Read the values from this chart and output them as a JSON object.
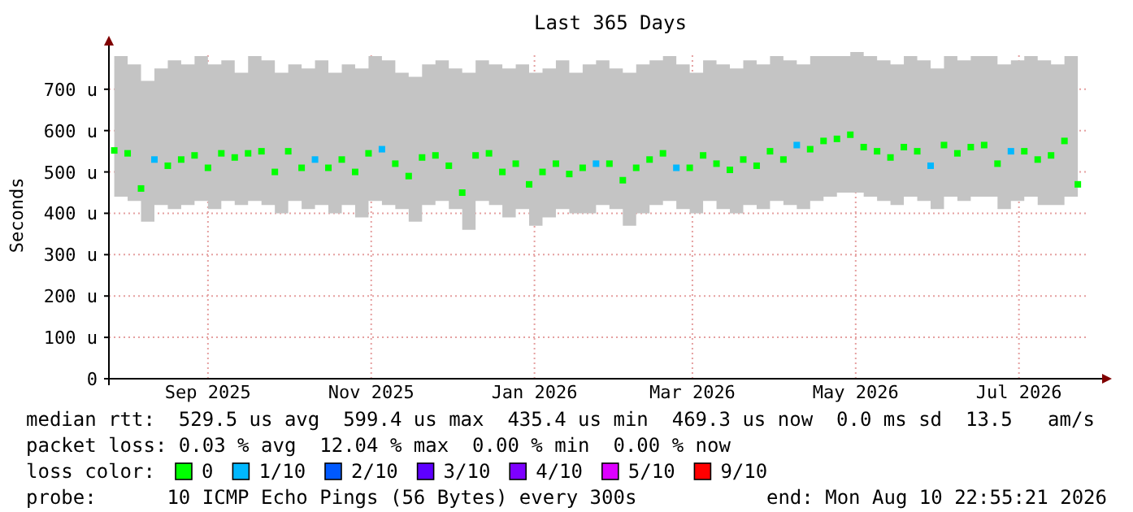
{
  "chart_data": {
    "type": "scatter",
    "title": "Last 365 Days",
    "ylabel": "Seconds",
    "x": [
      "2025-08-12",
      "2025-08-17",
      "2025-08-22",
      "2025-08-27",
      "2025-09-01",
      "2025-09-06",
      "2025-09-11",
      "2025-09-16",
      "2025-09-21",
      "2025-09-26",
      "2025-10-01",
      "2025-10-06",
      "2025-10-11",
      "2025-10-16",
      "2025-10-21",
      "2025-10-26",
      "2025-10-31",
      "2025-11-05",
      "2025-11-10",
      "2025-11-15",
      "2025-11-20",
      "2025-11-25",
      "2025-11-30",
      "2025-12-05",
      "2025-12-10",
      "2025-12-15",
      "2025-12-20",
      "2025-12-25",
      "2025-12-30",
      "2026-01-04",
      "2026-01-09",
      "2026-01-14",
      "2026-01-19",
      "2026-01-24",
      "2026-01-29",
      "2026-02-03",
      "2026-02-08",
      "2026-02-13",
      "2026-02-18",
      "2026-02-23",
      "2026-02-28",
      "2026-03-05",
      "2026-03-10",
      "2026-03-15",
      "2026-03-20",
      "2026-03-25",
      "2026-03-30",
      "2026-04-04",
      "2026-04-09",
      "2026-04-14",
      "2026-04-19",
      "2026-04-24",
      "2026-04-29",
      "2026-05-04",
      "2026-05-09",
      "2026-05-14",
      "2026-05-19",
      "2026-05-24",
      "2026-05-29",
      "2026-06-03",
      "2026-06-08",
      "2026-06-13",
      "2026-06-18",
      "2026-06-23",
      "2026-06-28",
      "2026-07-03",
      "2026-07-08",
      "2026-07-13",
      "2026-07-18",
      "2026-07-23",
      "2026-07-28",
      "2026-08-02",
      "2026-08-07"
    ],
    "series": [
      {
        "name": "0",
        "color": "#00ff00",
        "values": [
          552,
          545,
          460,
          null,
          515,
          530,
          540,
          510,
          545,
          535,
          545,
          550,
          500,
          550,
          510,
          null,
          510,
          530,
          500,
          545,
          null,
          520,
          490,
          535,
          540,
          515,
          450,
          540,
          545,
          500,
          520,
          470,
          500,
          520,
          495,
          510,
          null,
          520,
          480,
          510,
          530,
          545,
          null,
          510,
          540,
          520,
          505,
          530,
          515,
          550,
          530,
          null,
          555,
          575,
          580,
          590,
          560,
          550,
          535,
          560,
          550,
          null,
          565,
          545,
          560,
          565,
          520,
          null,
          550,
          530,
          540,
          575,
          470
        ],
        "lower": [
          440,
          430,
          380,
          420,
          410,
          420,
          430,
          410,
          430,
          420,
          430,
          420,
          400,
          430,
          410,
          420,
          400,
          420,
          390,
          430,
          420,
          410,
          380,
          420,
          430,
          410,
          360,
          430,
          420,
          390,
          410,
          370,
          390,
          410,
          400,
          400,
          420,
          410,
          370,
          400,
          420,
          430,
          410,
          400,
          430,
          410,
          400,
          420,
          410,
          430,
          420,
          410,
          430,
          440,
          450,
          450,
          440,
          430,
          420,
          440,
          430,
          410,
          440,
          430,
          440,
          440,
          410,
          430,
          440,
          420,
          420,
          440,
          380
        ],
        "upper": [
          780,
          760,
          720,
          750,
          770,
          760,
          780,
          760,
          770,
          740,
          780,
          770,
          740,
          760,
          750,
          770,
          740,
          760,
          750,
          780,
          770,
          740,
          730,
          760,
          770,
          750,
          740,
          770,
          760,
          750,
          760,
          740,
          750,
          770,
          740,
          760,
          770,
          750,
          740,
          760,
          770,
          780,
          760,
          740,
          770,
          760,
          750,
          770,
          760,
          780,
          770,
          760,
          780,
          780,
          780,
          790,
          780,
          770,
          760,
          780,
          770,
          750,
          780,
          770,
          780,
          780,
          760,
          770,
          780,
          770,
          760,
          780,
          720
        ]
      },
      {
        "name": "1/10",
        "color": "#00b8ff",
        "values": [
          null,
          null,
          null,
          530,
          null,
          null,
          null,
          null,
          null,
          null,
          null,
          null,
          null,
          null,
          null,
          530,
          null,
          null,
          null,
          null,
          555,
          null,
          null,
          null,
          null,
          null,
          null,
          null,
          null,
          null,
          null,
          null,
          null,
          null,
          null,
          null,
          520,
          null,
          null,
          null,
          null,
          null,
          510,
          null,
          null,
          null,
          null,
          null,
          null,
          null,
          null,
          565,
          null,
          null,
          null,
          null,
          null,
          null,
          null,
          null,
          null,
          515,
          null,
          null,
          null,
          null,
          null,
          550,
          null,
          null,
          null,
          null,
          null
        ]
      },
      {
        "name": "2/10",
        "color": "#0059ff",
        "values": [
          null,
          null,
          null,
          null,
          null,
          null,
          null,
          null,
          null,
          null,
          null,
          null,
          null,
          null,
          null,
          null,
          null,
          null,
          null,
          null,
          null,
          null,
          null,
          null,
          null,
          null,
          null,
          null,
          null,
          null,
          null,
          null,
          null,
          null,
          null,
          null,
          null,
          null,
          null,
          null,
          null,
          null,
          null,
          null,
          null,
          null,
          null,
          null,
          null,
          null,
          null,
          null,
          null,
          null,
          null,
          null,
          null,
          null,
          null,
          null,
          null,
          null,
          null,
          null,
          null,
          null,
          null,
          null,
          null,
          null,
          null,
          null,
          null
        ]
      },
      {
        "name": "3/10",
        "color": "#5e00ff",
        "values": [
          null,
          null,
          null,
          null,
          null,
          null,
          null,
          null,
          null,
          null,
          null,
          null,
          null,
          null,
          null,
          null,
          null,
          null,
          null,
          null,
          null,
          null,
          null,
          null,
          null,
          null,
          null,
          null,
          null,
          null,
          null,
          null,
          null,
          null,
          null,
          null,
          null,
          null,
          null,
          null,
          null,
          null,
          null,
          null,
          null,
          null,
          null,
          null,
          null,
          null,
          null,
          null,
          null,
          null,
          null,
          null,
          null,
          null,
          null,
          null,
          null,
          null,
          null,
          null,
          null,
          null,
          null,
          null,
          null,
          null,
          null,
          null,
          null
        ]
      },
      {
        "name": "4/10",
        "color": "#7e00ff",
        "values": [
          null,
          null,
          null,
          null,
          null,
          null,
          null,
          null,
          null,
          null,
          null,
          null,
          null,
          null,
          null,
          null,
          null,
          null,
          null,
          null,
          null,
          null,
          null,
          null,
          null,
          null,
          null,
          null,
          null,
          null,
          null,
          null,
          null,
          null,
          null,
          null,
          null,
          null,
          null,
          null,
          null,
          null,
          null,
          null,
          null,
          null,
          null,
          null,
          null,
          null,
          null,
          null,
          null,
          null,
          null,
          null,
          null,
          null,
          null,
          null,
          null,
          null,
          null,
          null,
          null,
          null,
          null,
          null,
          null,
          null,
          null,
          null,
          null
        ]
      },
      {
        "name": "5/10",
        "color": "#dd00ff",
        "values": [
          null,
          null,
          null,
          null,
          null,
          null,
          null,
          null,
          null,
          null,
          null,
          null,
          null,
          null,
          null,
          null,
          null,
          null,
          null,
          null,
          null,
          null,
          null,
          null,
          null,
          null,
          null,
          null,
          null,
          null,
          null,
          null,
          null,
          null,
          null,
          null,
          null,
          null,
          null,
          null,
          null,
          null,
          null,
          null,
          null,
          null,
          null,
          null,
          null,
          null,
          null,
          null,
          null,
          null,
          null,
          null,
          null,
          null,
          null,
          null,
          null,
          null,
          null,
          null,
          null,
          null,
          null,
          null,
          null,
          null,
          null,
          null,
          null
        ]
      },
      {
        "name": "9/10",
        "color": "#ff0000",
        "values": [
          null,
          null,
          null,
          null,
          null,
          null,
          null,
          null,
          null,
          null,
          null,
          null,
          null,
          null,
          null,
          null,
          null,
          null,
          null,
          null,
          null,
          null,
          null,
          null,
          null,
          null,
          null,
          null,
          null,
          null,
          null,
          null,
          null,
          null,
          null,
          null,
          null,
          null,
          null,
          null,
          null,
          null,
          null,
          null,
          null,
          null,
          null,
          null,
          null,
          null,
          null,
          null,
          null,
          null,
          null,
          null,
          null,
          null,
          null,
          null,
          null,
          null,
          null,
          null,
          null,
          null,
          null,
          null,
          null,
          null,
          null,
          null,
          null
        ]
      }
    ],
    "xlim": [
      "2025-08-10",
      "2026-08-10"
    ],
    "xticks": [
      {
        "value": "2025-09-16",
        "label": "Sep 2025"
      },
      {
        "value": "2025-11-16",
        "label": "Nov 2025"
      },
      {
        "value": "2026-01-16",
        "label": "Jan 2026"
      },
      {
        "value": "2026-03-16",
        "label": "Mar 2026"
      },
      {
        "value": "2026-05-16",
        "label": "May 2026"
      },
      {
        "value": "2026-07-16",
        "label": "Jul 2026"
      }
    ],
    "ylim": [
      0,
      790
    ],
    "yticks": [
      0,
      {
        "value": 100,
        "label": "100 u"
      },
      {
        "value": 200,
        "label": "200 u"
      },
      {
        "value": 300,
        "label": "300 u"
      },
      {
        "value": 400,
        "label": "400 u"
      },
      {
        "value": 500,
        "label": "500 u"
      },
      {
        "value": 600,
        "label": "600 u"
      },
      {
        "value": 700,
        "label": "700 u"
      }
    ],
    "grid": true,
    "marker": "square",
    "legend": "bottom",
    "annotations": [
      "median rtt:  529.5 us avg  599.4 us max  435.4 us min  469.3 us now  0.0 ms sd  13.5   am/s",
      "packet loss: 0.03 % avg  12.04 % max  0.00 % min  0.00 % now",
      "loss color:",
      "probe:      10 ICMP Echo Pings (56 Bytes) every 300s",
      "end: Mon Aug 10 22:55:21 2026"
    ]
  }
}
